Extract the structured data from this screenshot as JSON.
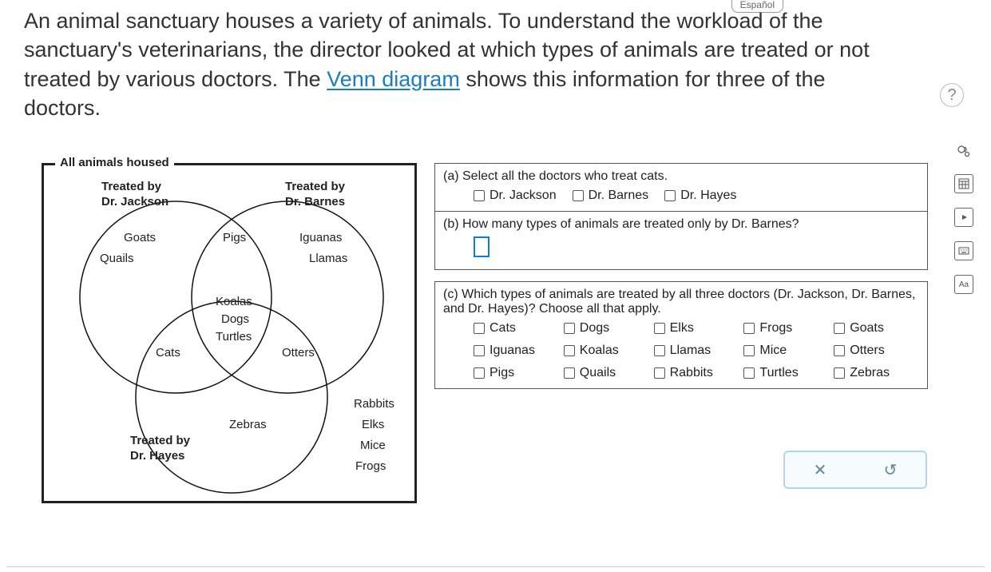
{
  "espanol": "Español",
  "prompt": {
    "prefix": "An animal sanctuary houses a variety of animals. To understand the workload of the sanctuary's veterinarians, the director looked at which types of animals are treated or not treated by various doctors. The ",
    "link": "Venn diagram",
    "suffix": " shows this information for three of the doctors."
  },
  "help_label": "?",
  "venn": {
    "box_title": "All animals housed",
    "circle_labels": {
      "jackson": "Treated by\nDr. Jackson",
      "barnes": "Treated by\nDr. Barnes",
      "hayes": "Treated by\nDr. Hayes"
    },
    "regions": {
      "jackson_only": [
        "Goats",
        "Quails"
      ],
      "barnes_only": [
        "Iguanas",
        "Llamas"
      ],
      "hayes_only": [
        "Zebras"
      ],
      "jackson_barnes": [
        "Pigs"
      ],
      "jackson_hayes": [
        "Cats"
      ],
      "barnes_hayes": [
        "Otters"
      ],
      "all_three": [
        "Koalas",
        "Dogs",
        "Turtles"
      ],
      "outside": [
        "Rabbits",
        "Elks",
        "Mice",
        "Frogs"
      ]
    },
    "circle_stroke": "#111111",
    "circle_stroke_width": 1.5,
    "circle_radius": 120,
    "centers": {
      "jackson": [
        165,
        165
      ],
      "barnes": [
        305,
        165
      ],
      "hayes": [
        235,
        290
      ]
    }
  },
  "questions": {
    "a": {
      "text": "(a) Select all the doctors who treat cats.",
      "options": [
        "Dr. Jackson",
        "Dr. Barnes",
        "Dr. Hayes"
      ]
    },
    "b": {
      "text": "(b) How many types of animals are treated only by Dr. Barnes?"
    },
    "c": {
      "text": "(c) Which types of animals are treated by all three doctors (Dr. Jackson, Dr. Barnes, and Dr. Hayes)? Choose all that apply.",
      "options": [
        "Cats",
        "Dogs",
        "Elks",
        "Frogs",
        "Goats",
        "Iguanas",
        "Koalas",
        "Llamas",
        "Mice",
        "Otters",
        "Pigs",
        "Quails",
        "Rabbits",
        "Turtles",
        "Zebras"
      ]
    }
  },
  "actions": {
    "clear": "✕",
    "reset": "↺"
  },
  "colors": {
    "link": "#1a7cc4",
    "border": "#222222",
    "input_border": "#0b7fd6",
    "action_border": "#b5d6e8",
    "action_bg": "#f6fbfe"
  }
}
